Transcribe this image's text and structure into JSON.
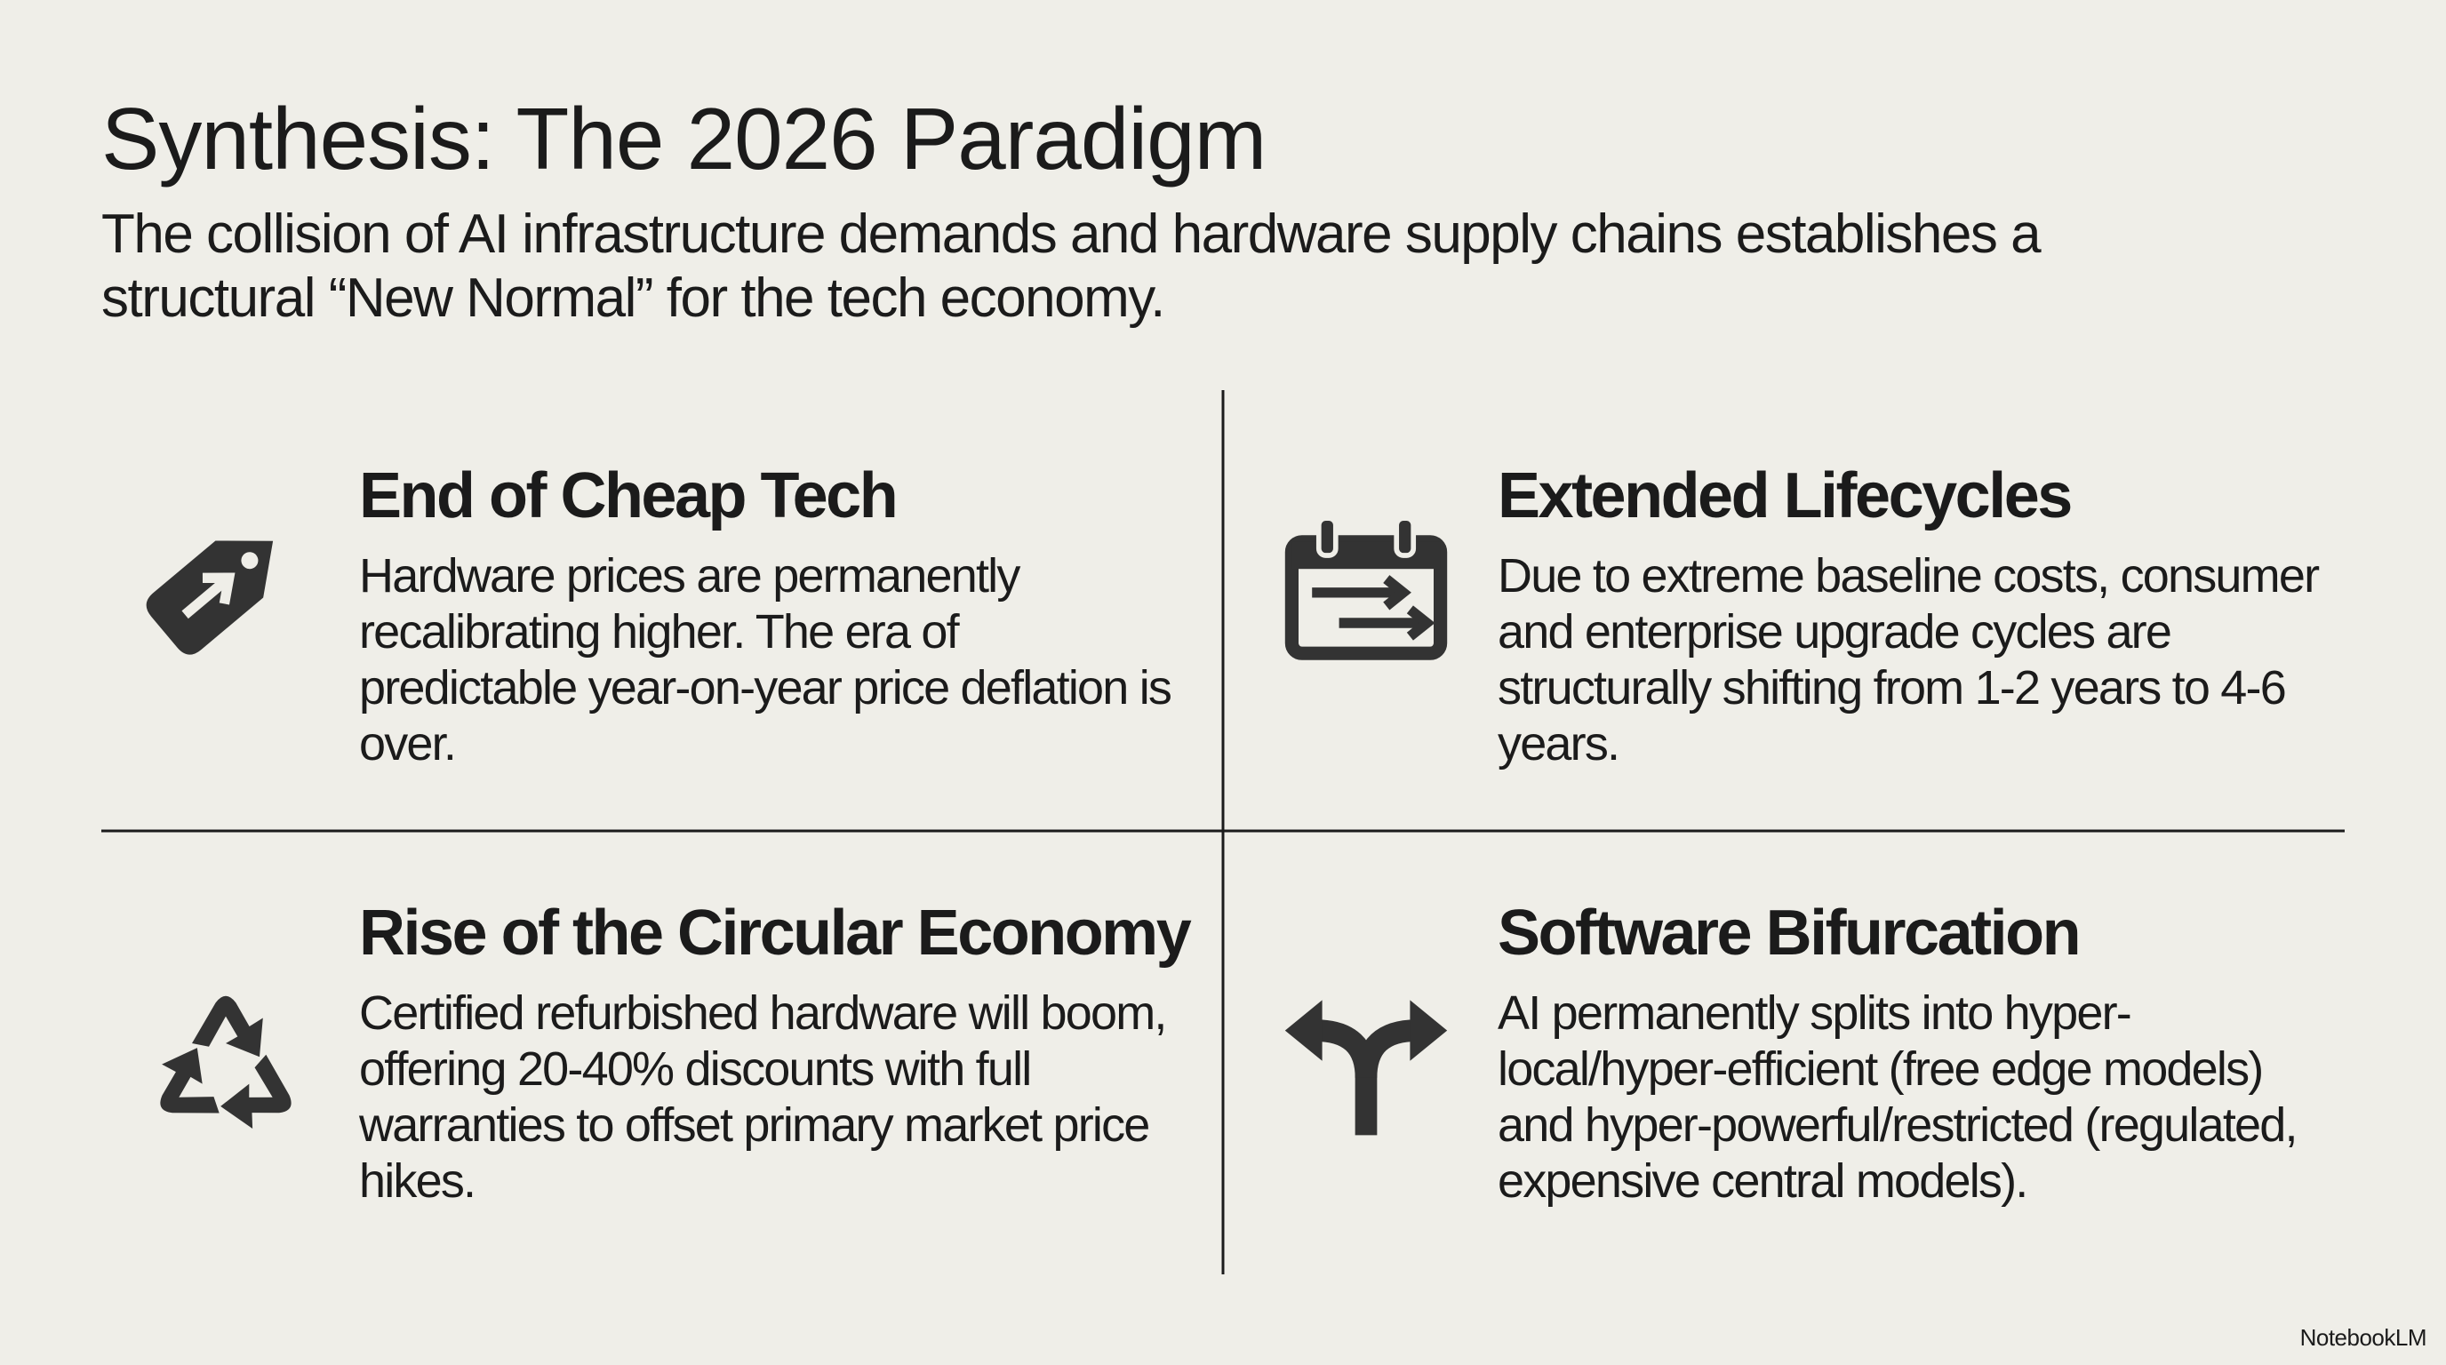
{
  "header": {
    "title": "Synthesis: The 2026 Paradigm",
    "subtitle": "The collision of AI infrastructure demands and hardware supply chains establishes a structural “New Normal” for the tech economy."
  },
  "quadrants": [
    {
      "heading": "End of Cheap Tech",
      "body": "Hardware prices are permanently recalibrating higher. The era of predictable year-on-year price deflation is over."
    },
    {
      "heading": "Extended Lifecycles",
      "body": "Due to extreme baseline costs, consumer and enterprise upgrade cycles are structurally shifting from 1-2 years to 4-6 years."
    },
    {
      "heading": "Rise of the Circular Economy",
      "body": "Certified refurbished hardware will boom, offering 20-40% discounts with full warranties to offset primary market price hikes."
    },
    {
      "heading": "Software Bifurcation",
      "body": "AI permanently splits into hyper-local/hyper-efficient (free edge models) and hyper-powerful/restricted (regulated, expensive central models)."
    }
  ],
  "footer": {
    "brand": "NotebookLM"
  }
}
